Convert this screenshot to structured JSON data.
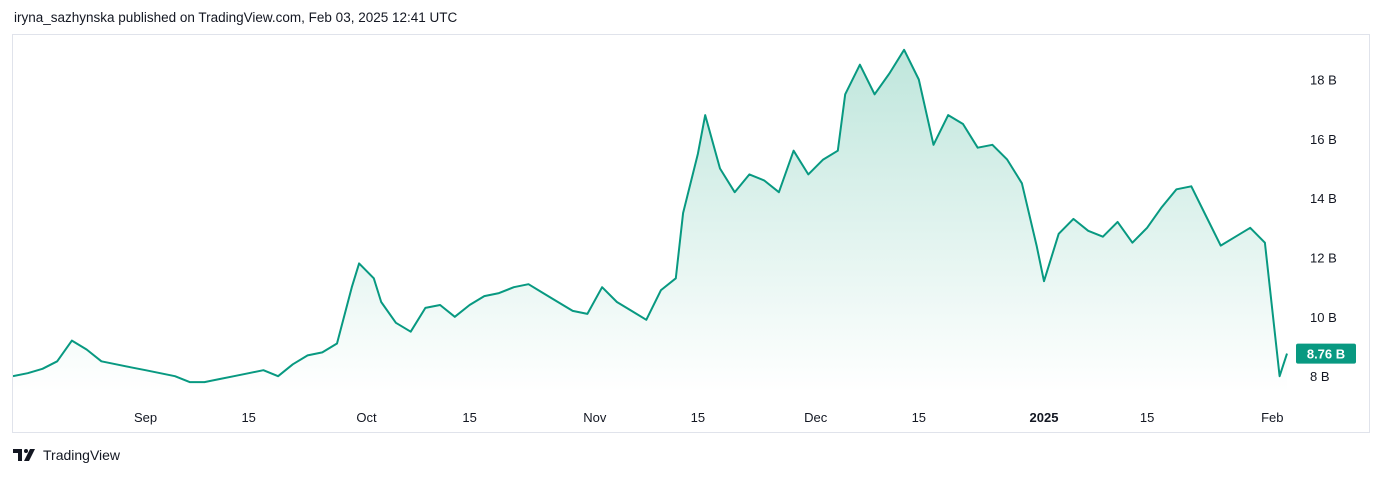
{
  "header": {
    "text": "iryna_sazhynska published on TradingView.com, Feb 03, 2025 12:41 UTC"
  },
  "footer": {
    "brand": "TradingView"
  },
  "colors": {
    "line": "#089981",
    "fill_top": "#bfe6dc",
    "fill_bottom": "#ffffff",
    "label_bg": "#089981",
    "label_text": "#ffffff"
  },
  "chart_data": {
    "type": "area",
    "ylabel": "",
    "xlabel": "",
    "ylim": [
      7.5,
      19.5
    ],
    "y_ticks": [
      {
        "value": 8,
        "label": "8 B"
      },
      {
        "value": 10,
        "label": "10 B"
      },
      {
        "value": 12,
        "label": "12 B"
      },
      {
        "value": 14,
        "label": "14 B"
      },
      {
        "value": 16,
        "label": "16 B"
      },
      {
        "value": 18,
        "label": "18 B"
      }
    ],
    "x_ticks": [
      {
        "date": "2024-09-01",
        "label": "Sep",
        "bold": false
      },
      {
        "date": "2024-09-15",
        "label": "15",
        "bold": false
      },
      {
        "date": "2024-10-01",
        "label": "Oct",
        "bold": false
      },
      {
        "date": "2024-10-15",
        "label": "15",
        "bold": false
      },
      {
        "date": "2024-11-01",
        "label": "Nov",
        "bold": false
      },
      {
        "date": "2024-11-15",
        "label": "15",
        "bold": false
      },
      {
        "date": "2024-12-01",
        "label": "Dec",
        "bold": false
      },
      {
        "date": "2024-12-15",
        "label": "15",
        "bold": false
      },
      {
        "date": "2025-01-01",
        "label": "2025",
        "bold": true
      },
      {
        "date": "2025-01-15",
        "label": "15",
        "bold": false
      },
      {
        "date": "2025-02-01",
        "label": "Feb",
        "bold": false
      }
    ],
    "last_value_label": "8.76 B",
    "last_value": 8.76,
    "x_range": [
      "2024-08-14",
      "2025-02-03"
    ],
    "series": [
      {
        "points": [
          [
            "2024-08-14",
            8.0
          ],
          [
            "2024-08-16",
            8.1
          ],
          [
            "2024-08-18",
            8.25
          ],
          [
            "2024-08-20",
            8.5
          ],
          [
            "2024-08-22",
            9.2
          ],
          [
            "2024-08-24",
            8.9
          ],
          [
            "2024-08-26",
            8.5
          ],
          [
            "2024-08-28",
            8.4
          ],
          [
            "2024-08-30",
            8.3
          ],
          [
            "2024-09-01",
            8.2
          ],
          [
            "2024-09-03",
            8.1
          ],
          [
            "2024-09-05",
            8.0
          ],
          [
            "2024-09-07",
            7.8
          ],
          [
            "2024-09-09",
            7.8
          ],
          [
            "2024-09-11",
            7.9
          ],
          [
            "2024-09-13",
            8.0
          ],
          [
            "2024-09-15",
            8.1
          ],
          [
            "2024-09-17",
            8.2
          ],
          [
            "2024-09-19",
            8.0
          ],
          [
            "2024-09-21",
            8.4
          ],
          [
            "2024-09-23",
            8.7
          ],
          [
            "2024-09-25",
            8.8
          ],
          [
            "2024-09-27",
            9.1
          ],
          [
            "2024-09-29",
            11.0
          ],
          [
            "2024-09-30",
            11.8
          ],
          [
            "2024-10-02",
            11.3
          ],
          [
            "2024-10-03",
            10.5
          ],
          [
            "2024-10-05",
            9.8
          ],
          [
            "2024-10-07",
            9.5
          ],
          [
            "2024-10-09",
            10.3
          ],
          [
            "2024-10-11",
            10.4
          ],
          [
            "2024-10-13",
            10.0
          ],
          [
            "2024-10-15",
            10.4
          ],
          [
            "2024-10-17",
            10.7
          ],
          [
            "2024-10-19",
            10.8
          ],
          [
            "2024-10-21",
            11.0
          ],
          [
            "2024-10-23",
            11.1
          ],
          [
            "2024-10-25",
            10.8
          ],
          [
            "2024-10-27",
            10.5
          ],
          [
            "2024-10-29",
            10.2
          ],
          [
            "2024-10-31",
            10.1
          ],
          [
            "2024-11-02",
            11.0
          ],
          [
            "2024-11-04",
            10.5
          ],
          [
            "2024-11-06",
            10.2
          ],
          [
            "2024-11-08",
            9.9
          ],
          [
            "2024-11-10",
            10.9
          ],
          [
            "2024-11-12",
            11.3
          ],
          [
            "2024-11-13",
            13.5
          ],
          [
            "2024-11-15",
            15.5
          ],
          [
            "2024-11-16",
            16.8
          ],
          [
            "2024-11-18",
            15.0
          ],
          [
            "2024-11-20",
            14.2
          ],
          [
            "2024-11-22",
            14.8
          ],
          [
            "2024-11-24",
            14.6
          ],
          [
            "2024-11-26",
            14.2
          ],
          [
            "2024-11-28",
            15.6
          ],
          [
            "2024-11-30",
            14.8
          ],
          [
            "2024-12-02",
            15.3
          ],
          [
            "2024-12-04",
            15.6
          ],
          [
            "2024-12-05",
            17.5
          ],
          [
            "2024-12-07",
            18.5
          ],
          [
            "2024-12-09",
            17.5
          ],
          [
            "2024-12-11",
            18.2
          ],
          [
            "2024-12-13",
            19.0
          ],
          [
            "2024-12-15",
            18.0
          ],
          [
            "2024-12-17",
            15.8
          ],
          [
            "2024-12-19",
            16.8
          ],
          [
            "2024-12-21",
            16.5
          ],
          [
            "2024-12-23",
            15.7
          ],
          [
            "2024-12-25",
            15.8
          ],
          [
            "2024-12-27",
            15.3
          ],
          [
            "2024-12-29",
            14.5
          ],
          [
            "2024-12-31",
            12.4
          ],
          [
            "2025-01-01",
            11.2
          ],
          [
            "2025-01-03",
            12.8
          ],
          [
            "2025-01-05",
            13.3
          ],
          [
            "2025-01-07",
            12.9
          ],
          [
            "2025-01-09",
            12.7
          ],
          [
            "2025-01-11",
            13.2
          ],
          [
            "2025-01-13",
            12.5
          ],
          [
            "2025-01-15",
            13.0
          ],
          [
            "2025-01-17",
            13.7
          ],
          [
            "2025-01-19",
            14.3
          ],
          [
            "2025-01-21",
            14.4
          ],
          [
            "2025-01-23",
            13.4
          ],
          [
            "2025-01-25",
            12.4
          ],
          [
            "2025-01-27",
            12.7
          ],
          [
            "2025-01-29",
            13.0
          ],
          [
            "2025-01-31",
            12.5
          ],
          [
            "2025-02-02",
            8.0
          ],
          [
            "2025-02-03",
            8.76
          ]
        ]
      }
    ]
  }
}
